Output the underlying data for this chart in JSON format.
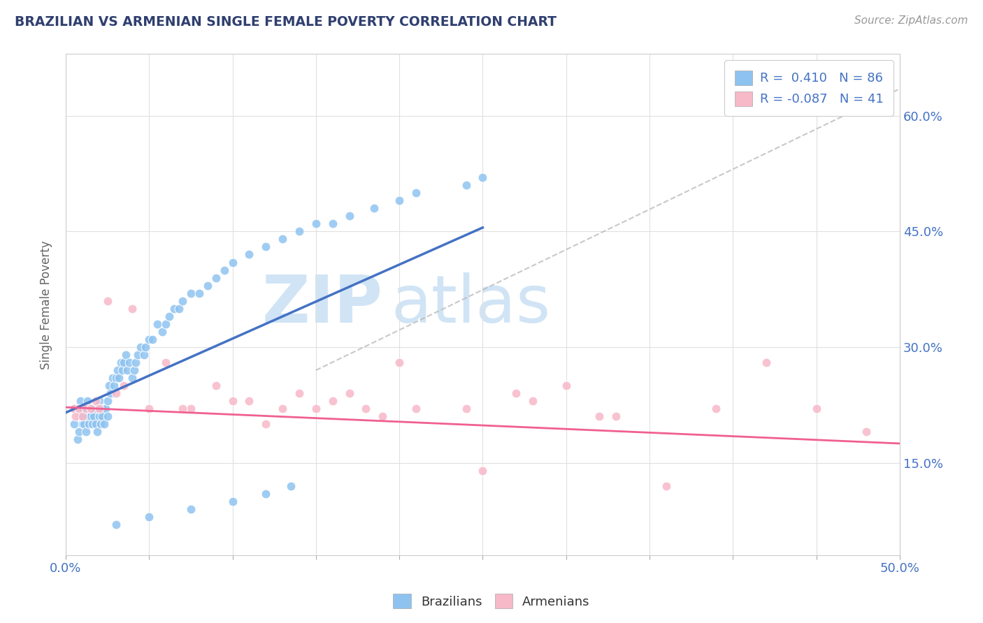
{
  "title": "BRAZILIAN VS ARMENIAN SINGLE FEMALE POVERTY CORRELATION CHART",
  "source_text": "Source: ZipAtlas.com",
  "ylabel": "Single Female Poverty",
  "xlim": [
    0.0,
    0.5
  ],
  "ylim": [
    0.03,
    0.68
  ],
  "xticks": [
    0.0,
    0.05,
    0.1,
    0.15,
    0.2,
    0.25,
    0.3,
    0.35,
    0.4,
    0.45,
    0.5
  ],
  "ytick_labels_right": [
    "15.0%",
    "30.0%",
    "45.0%",
    "60.0%"
  ],
  "yticks_right": [
    0.15,
    0.3,
    0.45,
    0.6
  ],
  "brazil_R": 0.41,
  "brazil_N": 86,
  "armenia_R": -0.087,
  "armenia_N": 41,
  "brazil_color": "#8ec3f0",
  "armenia_color": "#f7b8c8",
  "brazil_line_color": "#4472c4",
  "armenia_line_color": "#f06090",
  "ref_line_color": "#bbbbbb",
  "watermark_zip": "ZIP",
  "watermark_atlas": "atlas",
  "watermark_color": "#d0e4f5",
  "title_color": "#2f3f6f",
  "axis_label_color": "#4472c4",
  "legend_R_color": "#4472c4",
  "background_color": "#ffffff",
  "brazil_line_x": [
    0.0,
    0.25
  ],
  "brazil_line_y": [
    0.215,
    0.455
  ],
  "armenia_line_x": [
    0.0,
    0.5
  ],
  "armenia_line_y": [
    0.222,
    0.175
  ],
  "ref_line_x": [
    0.15,
    0.5
  ],
  "ref_line_y": [
    0.27,
    0.635
  ],
  "brazil_scatter_x": [
    0.005,
    0.005,
    0.007,
    0.008,
    0.008,
    0.009,
    0.009,
    0.01,
    0.01,
    0.01,
    0.011,
    0.012,
    0.012,
    0.013,
    0.013,
    0.014,
    0.015,
    0.015,
    0.016,
    0.016,
    0.017,
    0.018,
    0.018,
    0.019,
    0.02,
    0.02,
    0.021,
    0.022,
    0.022,
    0.023,
    0.024,
    0.025,
    0.025,
    0.026,
    0.027,
    0.028,
    0.029,
    0.03,
    0.031,
    0.032,
    0.033,
    0.034,
    0.035,
    0.036,
    0.037,
    0.038,
    0.04,
    0.041,
    0.042,
    0.043,
    0.045,
    0.047,
    0.048,
    0.05,
    0.052,
    0.055,
    0.058,
    0.06,
    0.062,
    0.065,
    0.068,
    0.07,
    0.075,
    0.08,
    0.085,
    0.09,
    0.095,
    0.1,
    0.11,
    0.12,
    0.13,
    0.14,
    0.15,
    0.16,
    0.17,
    0.185,
    0.2,
    0.21,
    0.24,
    0.25,
    0.03,
    0.05,
    0.075,
    0.1,
    0.12,
    0.135
  ],
  "brazil_scatter_y": [
    0.2,
    0.22,
    0.18,
    0.22,
    0.19,
    0.21,
    0.23,
    0.2,
    0.21,
    0.22,
    0.2,
    0.19,
    0.22,
    0.21,
    0.23,
    0.2,
    0.22,
    0.21,
    0.2,
    0.22,
    0.21,
    0.2,
    0.22,
    0.19,
    0.21,
    0.23,
    0.2,
    0.22,
    0.21,
    0.2,
    0.22,
    0.23,
    0.21,
    0.25,
    0.24,
    0.26,
    0.25,
    0.26,
    0.27,
    0.26,
    0.28,
    0.27,
    0.28,
    0.29,
    0.27,
    0.28,
    0.26,
    0.27,
    0.28,
    0.29,
    0.3,
    0.29,
    0.3,
    0.31,
    0.31,
    0.33,
    0.32,
    0.33,
    0.34,
    0.35,
    0.35,
    0.36,
    0.37,
    0.37,
    0.38,
    0.39,
    0.4,
    0.41,
    0.42,
    0.43,
    0.44,
    0.45,
    0.46,
    0.46,
    0.47,
    0.48,
    0.49,
    0.5,
    0.51,
    0.52,
    0.07,
    0.08,
    0.09,
    0.1,
    0.11,
    0.12
  ],
  "armenia_scatter_x": [
    0.005,
    0.006,
    0.008,
    0.01,
    0.012,
    0.015,
    0.018,
    0.02,
    0.025,
    0.03,
    0.035,
    0.04,
    0.05,
    0.06,
    0.075,
    0.09,
    0.11,
    0.13,
    0.15,
    0.17,
    0.19,
    0.21,
    0.24,
    0.27,
    0.3,
    0.33,
    0.36,
    0.39,
    0.42,
    0.45,
    0.48,
    0.07,
    0.1,
    0.12,
    0.14,
    0.16,
    0.18,
    0.2,
    0.25,
    0.28,
    0.32
  ],
  "armenia_scatter_y": [
    0.22,
    0.21,
    0.22,
    0.21,
    0.22,
    0.22,
    0.23,
    0.22,
    0.36,
    0.24,
    0.25,
    0.35,
    0.22,
    0.28,
    0.22,
    0.25,
    0.23,
    0.22,
    0.22,
    0.24,
    0.21,
    0.22,
    0.22,
    0.24,
    0.25,
    0.21,
    0.12,
    0.22,
    0.28,
    0.22,
    0.19,
    0.22,
    0.23,
    0.2,
    0.24,
    0.23,
    0.22,
    0.28,
    0.14,
    0.23,
    0.21
  ]
}
